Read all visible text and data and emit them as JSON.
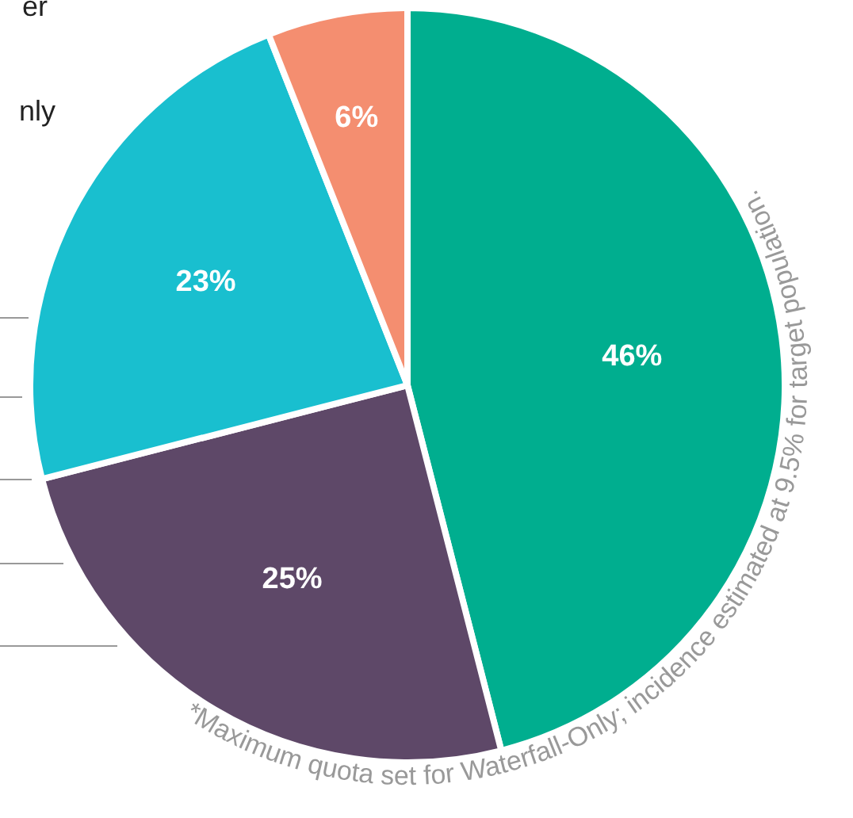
{
  "chart_data": {
    "type": "pie",
    "categories": [
      null,
      null,
      null,
      null
    ],
    "values": [
      46,
      25,
      23,
      6
    ],
    "colors": [
      "#00ae8f",
      "#5e4868",
      "#19bfcf",
      "#f48e70"
    ],
    "value_labels": [
      "46%",
      "25%",
      "23%",
      "6%"
    ],
    "legend": false,
    "annotations": [
      "er",
      "nly",
      "*Maximum quota set for Waterfall-Only; incidence estimated at 9.5% for target population."
    ]
  }
}
